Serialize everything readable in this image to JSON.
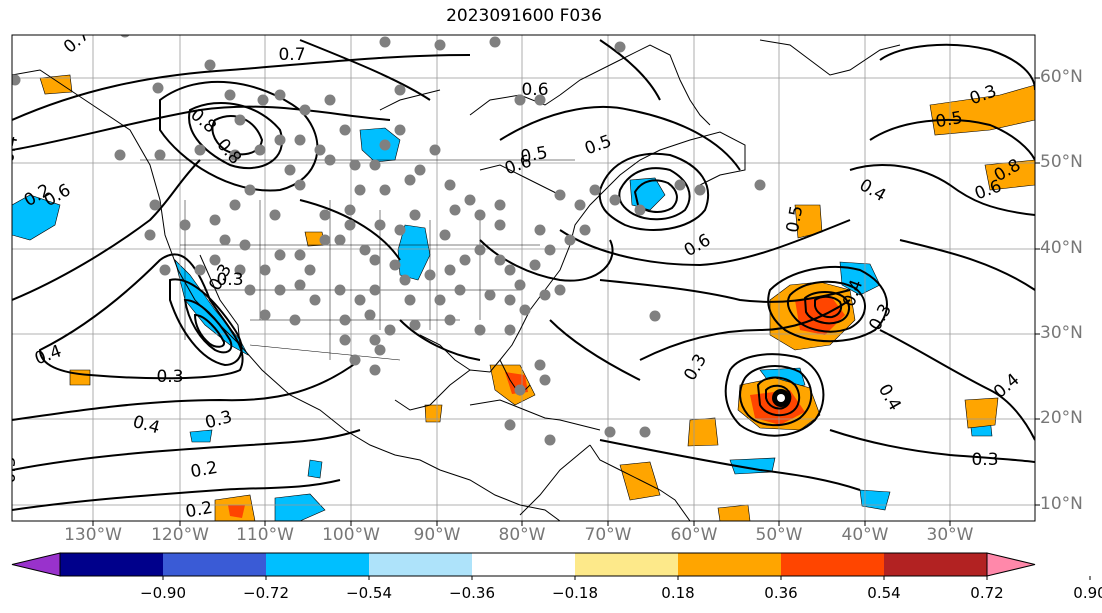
{
  "title": "2023091600 F036",
  "map": {
    "lat_labels": [
      "60°N",
      "50°N",
      "40°N",
      "30°N",
      "20°N",
      "10°N"
    ],
    "lon_labels": [
      "130°W",
      "120°W",
      "110°W",
      "100°W",
      "90°W",
      "80°W",
      "70°W",
      "60°W",
      "50°W",
      "40°W",
      "30°W"
    ],
    "contour_labels": [
      "0.7",
      "0.7",
      "0.6",
      "0.5",
      "0.8",
      "0.6",
      "0.3",
      "0.4",
      "0.2",
      "0.3",
      "0.4",
      "0.2",
      "0.4",
      "0.6",
      "0.5",
      "0.6",
      "0.3",
      "0.4",
      "0.3",
      "0.5",
      "0.8",
      "0.6",
      "0.4",
      "0.3",
      "0.5",
      "0.3",
      "0.4",
      "0.4",
      "0.3",
      "0.2",
      "0.8",
      "0.3",
      "0.3"
    ],
    "colors": {
      "coast": "#000000",
      "grid": "#999999",
      "obs_dot": "#808080",
      "contour": "#000000"
    }
  },
  "colorbar": {
    "ticks": [
      "−0.90",
      "−0.72",
      "−0.54",
      "−0.36",
      "−0.18",
      "0.18",
      "0.36",
      "0.54",
      "0.72",
      "0.90"
    ],
    "colors": [
      "#9932cc",
      "#00008b",
      "#3a5bd6",
      "#00bfff",
      "#aee3fa",
      "#ffffff",
      "#fde98a",
      "#ffa500",
      "#ff4500",
      "#b22222",
      "#ff88aa"
    ]
  }
}
